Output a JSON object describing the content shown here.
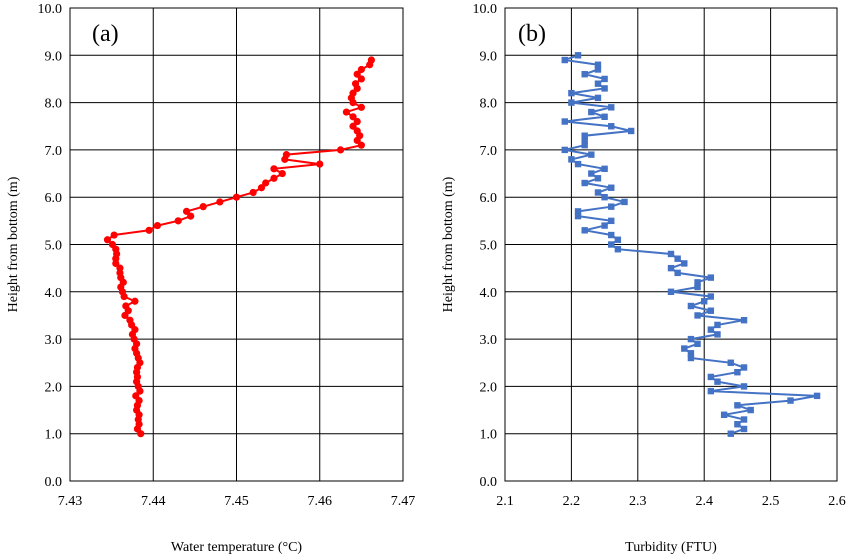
{
  "chart_data": [
    {
      "type": "line",
      "panel_label": "(a)",
      "xlabel": "Water temperature (°C)",
      "ylabel": "Height from bottom (m)",
      "xlim": [
        7.43,
        7.47
      ],
      "ylim": [
        0.0,
        10.0
      ],
      "x_ticks": [
        "7.43",
        "7.44",
        "7.45",
        "7.46",
        "7.47"
      ],
      "y_ticks": [
        "0.0",
        "1.0",
        "2.0",
        "3.0",
        "4.0",
        "5.0",
        "6.0",
        "7.0",
        "8.0",
        "9.0",
        "10.0"
      ],
      "grid": true,
      "marker": "circle",
      "color": "#ff0000",
      "series": [
        {
          "x": [
            7.4385,
            7.4381,
            7.4383,
            7.4382,
            7.4383,
            7.438,
            7.4381,
            7.4383,
            7.4379,
            7.4384,
            7.4382,
            7.438,
            7.4381,
            7.438,
            7.4381,
            7.4384,
            7.4382,
            7.438,
            7.4378,
            7.438,
            7.4377,
            7.4375,
            7.4378,
            7.4374,
            7.4372,
            7.4366,
            7.437,
            7.4367,
            7.4378,
            7.4365,
            7.4363,
            7.4361,
            7.4364,
            7.4361,
            7.436,
            7.436,
            7.4355,
            7.4355,
            7.4356,
            7.4355,
            7.4351,
            7.4345,
            7.4353,
            7.4395,
            7.4405,
            7.443,
            7.4445,
            7.444,
            7.446,
            7.448,
            7.45,
            7.452,
            7.453,
            7.4535,
            7.4545,
            7.4555,
            7.4545,
            7.46,
            7.4558,
            7.456,
            7.4625,
            7.465,
            7.4645,
            7.4648,
            7.4645,
            7.464,
            7.4645,
            7.464,
            7.4632,
            7.465,
            7.464,
            7.4638,
            7.464,
            7.4645,
            7.4643,
            7.465,
            7.4645,
            7.465,
            7.466,
            7.4662
          ],
          "y": [
            1.0,
            1.1,
            1.2,
            1.3,
            1.4,
            1.5,
            1.6,
            1.7,
            1.8,
            1.9,
            2.0,
            2.1,
            2.2,
            2.3,
            2.4,
            2.5,
            2.6,
            2.7,
            2.8,
            2.9,
            3.0,
            3.1,
            3.2,
            3.3,
            3.4,
            3.5,
            3.6,
            3.7,
            3.8,
            3.9,
            4.0,
            4.1,
            4.2,
            4.3,
            4.4,
            4.5,
            4.6,
            4.7,
            4.8,
            4.9,
            5.0,
            5.1,
            5.2,
            5.3,
            5.4,
            5.5,
            5.6,
            5.7,
            5.8,
            5.9,
            6.0,
            6.1,
            6.2,
            6.3,
            6.4,
            6.5,
            6.6,
            6.7,
            6.8,
            6.9,
            7.0,
            7.1,
            7.2,
            7.3,
            7.4,
            7.5,
            7.6,
            7.7,
            7.8,
            7.9,
            8.0,
            8.1,
            8.2,
            8.3,
            8.4,
            8.5,
            8.6,
            8.7,
            8.8,
            8.9
          ]
        }
      ]
    },
    {
      "type": "line",
      "panel_label": "(b)",
      "xlabel": "Turbidity (FTU)",
      "ylabel": "Height from bottom (m)",
      "xlim": [
        2.1,
        2.6
      ],
      "ylim": [
        0.0,
        10.0
      ],
      "x_ticks": [
        "2.1",
        "2.2",
        "2.3",
        "2.4",
        "2.5",
        "2.6"
      ],
      "y_ticks": [
        "0.0",
        "1.0",
        "2.0",
        "3.0",
        "4.0",
        "5.0",
        "6.0",
        "7.0",
        "8.0",
        "9.0",
        "10.0"
      ],
      "grid": true,
      "marker": "square",
      "color": "#4472c4",
      "series": [
        {
          "x": [
            2.44,
            2.46,
            2.45,
            2.46,
            2.43,
            2.47,
            2.45,
            2.53,
            2.57,
            2.41,
            2.46,
            2.42,
            2.41,
            2.45,
            2.46,
            2.44,
            2.38,
            2.38,
            2.37,
            2.39,
            2.38,
            2.42,
            2.41,
            2.42,
            2.46,
            2.39,
            2.41,
            2.38,
            2.4,
            2.41,
            2.35,
            2.39,
            2.39,
            2.41,
            2.36,
            2.35,
            2.37,
            2.36,
            2.35,
            2.27,
            2.26,
            2.27,
            2.26,
            2.22,
            2.25,
            2.26,
            2.21,
            2.21,
            2.26,
            2.28,
            2.25,
            2.24,
            2.26,
            2.22,
            2.24,
            2.23,
            2.25,
            2.21,
            2.2,
            2.23,
            2.19,
            2.22,
            2.22,
            2.22,
            2.29,
            2.26,
            2.19,
            2.25,
            2.23,
            2.26,
            2.2,
            2.24,
            2.2,
            2.25,
            2.24,
            2.25,
            2.22,
            2.24,
            2.24,
            2.19,
            2.21
          ],
          "y": [
            1.0,
            1.1,
            1.2,
            1.3,
            1.4,
            1.5,
            1.6,
            1.7,
            1.8,
            1.9,
            2.0,
            2.1,
            2.2,
            2.3,
            2.4,
            2.5,
            2.6,
            2.7,
            2.8,
            2.9,
            3.0,
            3.1,
            3.2,
            3.3,
            3.4,
            3.5,
            3.6,
            3.7,
            3.8,
            3.9,
            4.0,
            4.1,
            4.2,
            4.3,
            4.4,
            4.5,
            4.6,
            4.7,
            4.8,
            4.9,
            5.0,
            5.1,
            5.2,
            5.3,
            5.4,
            5.5,
            5.6,
            5.7,
            5.8,
            5.9,
            6.0,
            6.1,
            6.2,
            6.3,
            6.4,
            6.5,
            6.6,
            6.7,
            6.8,
            6.9,
            7.0,
            7.1,
            7.2,
            7.3,
            7.4,
            7.5,
            7.6,
            7.7,
            7.8,
            7.9,
            8.0,
            8.1,
            8.2,
            8.3,
            8.4,
            8.5,
            8.6,
            8.7,
            8.8,
            8.9,
            9.0
          ]
        }
      ]
    }
  ]
}
